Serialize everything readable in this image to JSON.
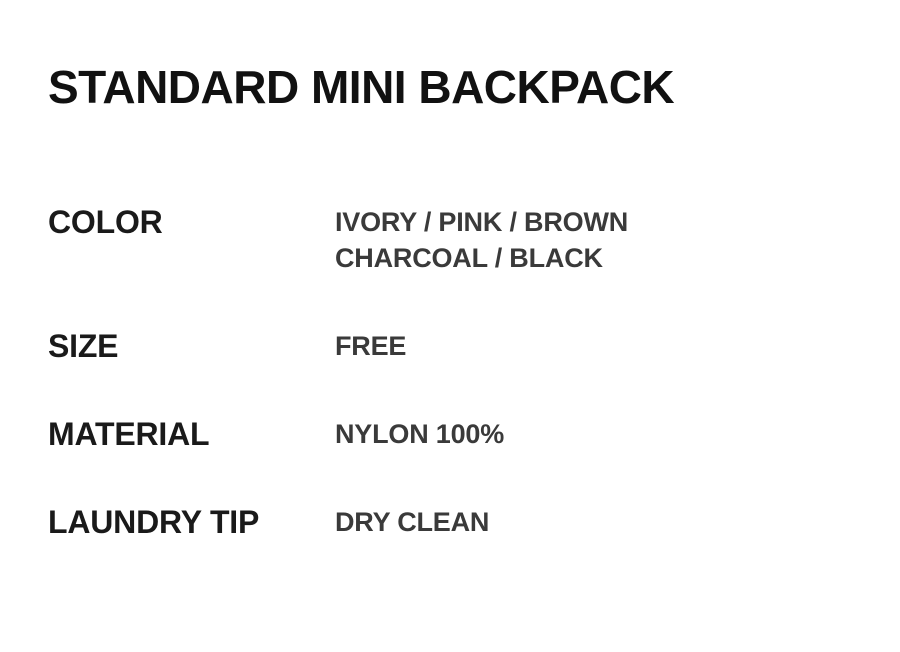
{
  "page": {
    "title": "STANDARD MINI BACKPACK"
  },
  "specs": {
    "rows": [
      {
        "label": "COLOR",
        "value_lines": [
          "IVORY / PINK / BROWN",
          "CHARCOAL / BLACK"
        ]
      },
      {
        "label": "SIZE",
        "value_lines": [
          "FREE"
        ]
      },
      {
        "label": "MATERIAL",
        "value_lines": [
          "NYLON 100%"
        ]
      },
      {
        "label": "LAUNDRY TIP",
        "value_lines": [
          "DRY CLEAN"
        ]
      }
    ]
  },
  "colors": {
    "background": "#ffffff",
    "title_text": "#111111",
    "label_text": "#1a1a1a",
    "value_text": "#3a3a3a"
  }
}
